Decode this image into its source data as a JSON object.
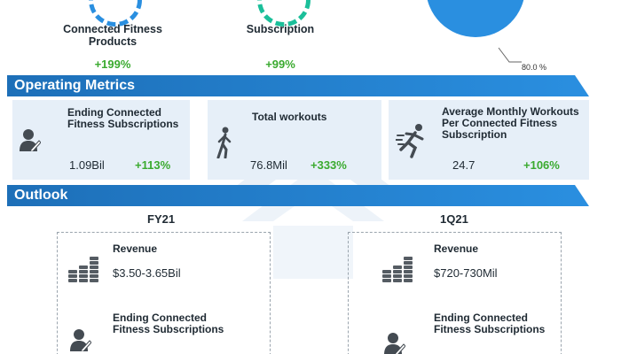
{
  "top": {
    "items": [
      {
        "label_line1": "Connected Fitness",
        "label_line2": "Products",
        "change": "+199%"
      },
      {
        "label_line1": "Subscription",
        "label_line2": "",
        "change": "+99%"
      }
    ],
    "pie_label": "80.0 %"
  },
  "colors": {
    "primary_blue": "#2a8fe0",
    "header_blue": "#1d6fb8",
    "teal": "#1bbf9a",
    "green_text": "#3aaa2f",
    "card_bg": "#e6eff8"
  },
  "sections": {
    "operating_metrics": "Operating Metrics",
    "outlook": "Outlook"
  },
  "metrics": [
    {
      "title_line1": "Ending Connected",
      "title_line2": "Fitness Subscriptions",
      "title_line3": "",
      "value": "1.09Bil",
      "change": "+113%",
      "icon": "user-pen-icon"
    },
    {
      "title_line1": "Total workouts",
      "title_line2": "",
      "title_line3": "",
      "value": "76.8Mil",
      "change": "+333%",
      "icon": "walking-person-icon"
    },
    {
      "title_line1": "Average Monthly Workouts",
      "title_line2": "Per Connected Fitness",
      "title_line3": "Subscription",
      "value": "24.7",
      "change": "+106%",
      "icon": "running-person-icon"
    }
  ],
  "outlook": [
    {
      "period": "FY21",
      "revenue_label": "Revenue",
      "revenue_value": "$3.50-3.65Bil",
      "subs_label_line1": "Ending Connected",
      "subs_label_line2": "Fitness Subscriptions"
    },
    {
      "period": "1Q21",
      "revenue_label": "Revenue",
      "revenue_value": "$720-730Mil",
      "subs_label_line1": "Ending Connected",
      "subs_label_line2": "Fitness Subscriptions"
    }
  ]
}
